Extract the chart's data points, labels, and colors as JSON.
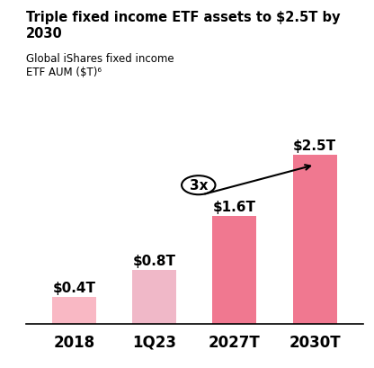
{
  "title": "Triple fixed income ETF assets to $2.5T by 2030",
  "subtitle_line1": "Global iShares fixed income",
  "subtitle_line2": "ETF AUM ($T)⁶",
  "categories": [
    "2018",
    "1Q23",
    "2027T",
    "2030T"
  ],
  "values": [
    0.4,
    0.8,
    1.6,
    2.5
  ],
  "bar_labels": [
    "$0.4T",
    "$0.8T",
    "$1.6T",
    "$2.5T"
  ],
  "bar_colors": [
    "#f9b8c0",
    "#f0b8c8",
    "#f07090",
    "#f07090"
  ],
  "light_bar_colors": [
    "#f9c8d0",
    "#f0c0cc"
  ],
  "dark_bar_colors": [
    "#f07890",
    "#f07890"
  ],
  "ylim": [
    0,
    3.0
  ],
  "annotation_text": "3x",
  "top_bar_color": "#1a1a1a",
  "background_color": "#ffffff"
}
